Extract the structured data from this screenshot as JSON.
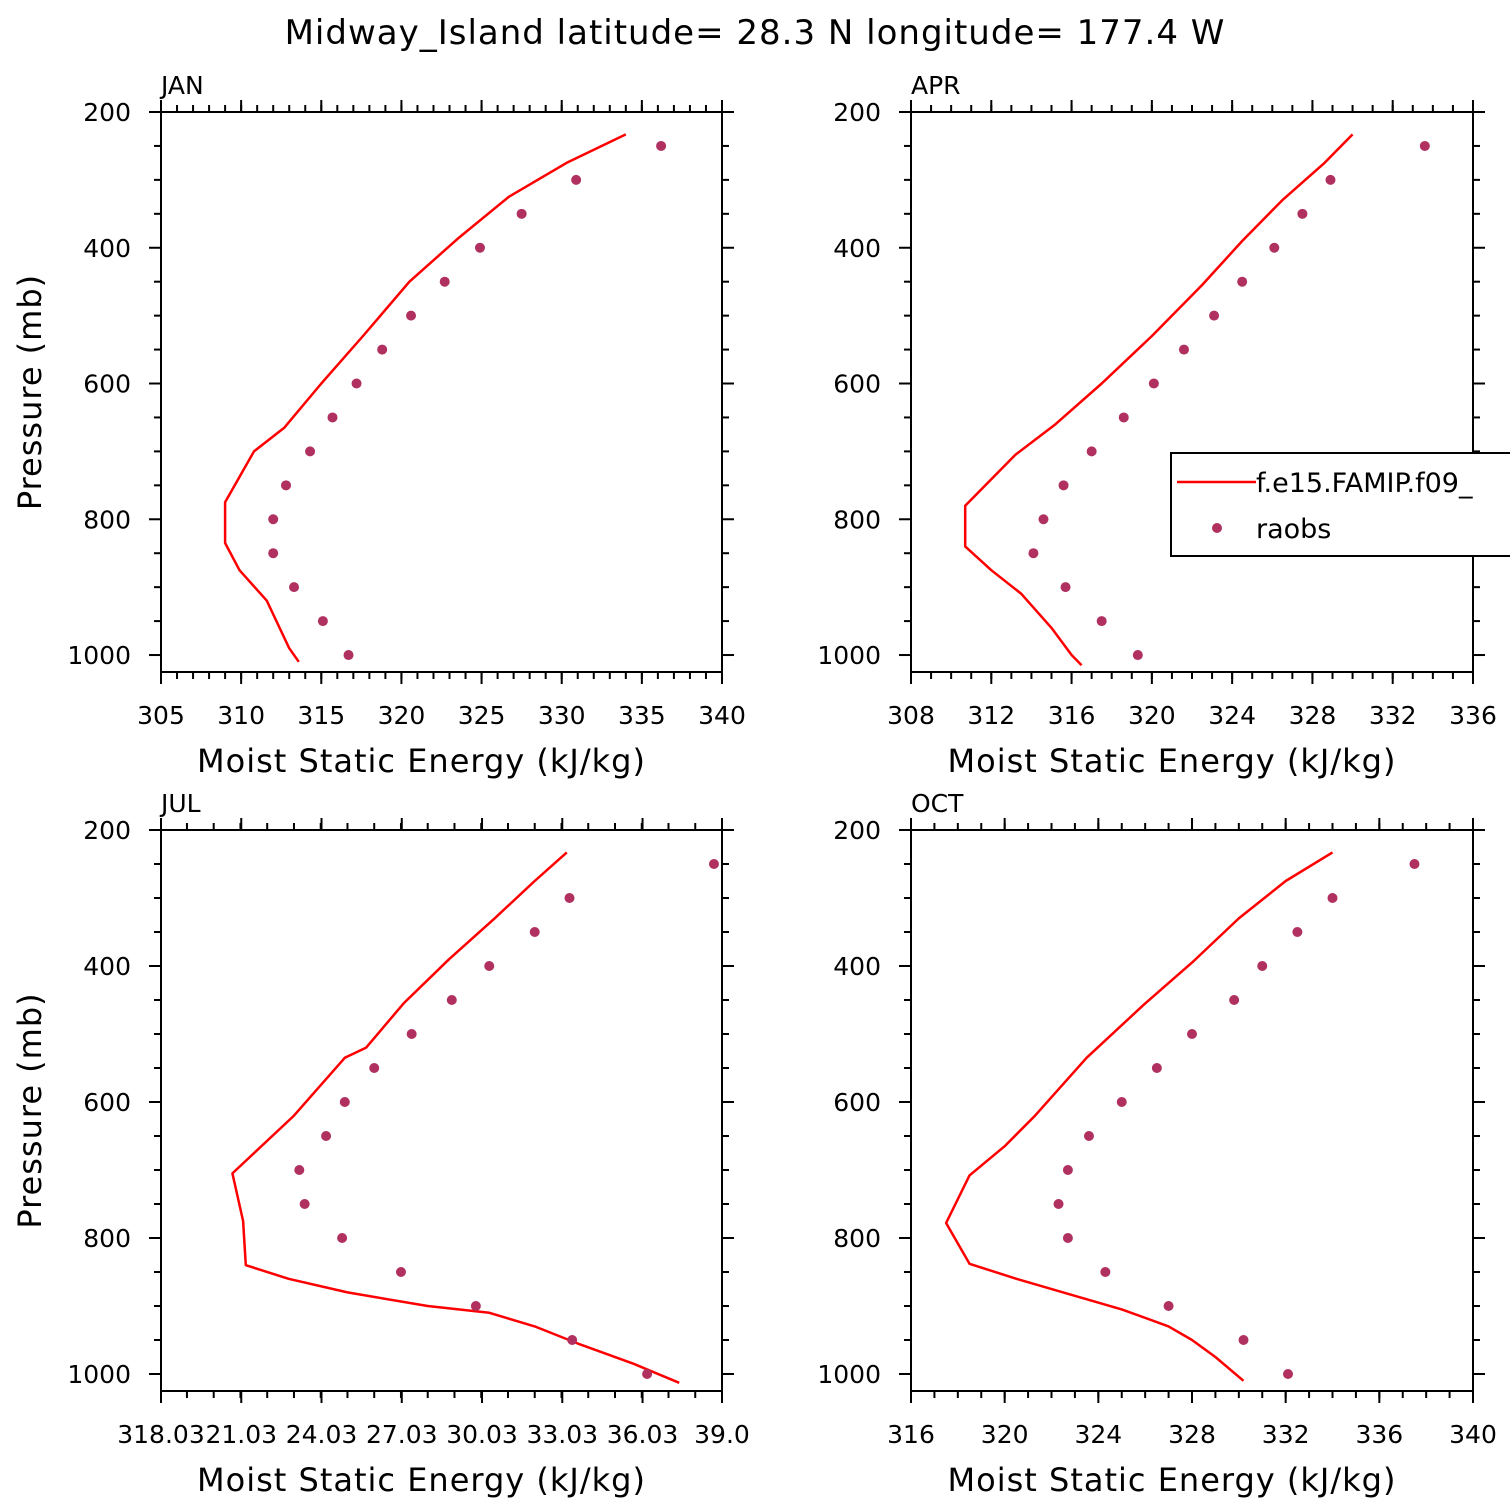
{
  "title": "Midway_Island  latitude= 28.3 N longitude= 177.4 W",
  "colors": {
    "model_line": "#ff0000",
    "raobs_marker": "#b0305f",
    "axes": "#000000"
  },
  "legend": {
    "entries": [
      {
        "label": "f.e15.FAMIP.f09_",
        "style": "line"
      },
      {
        "label": "raobs",
        "style": "marker"
      }
    ]
  },
  "chart_data": [
    {
      "type": "line",
      "panel": "JAN",
      "xlabel": "Moist Static Energy (kJ/kg)",
      "ylabel": "Pressure (mb)",
      "xlim": [
        305,
        340
      ],
      "ylim": [
        1025,
        200
      ],
      "xticks": [
        305,
        310,
        315,
        320,
        325,
        330,
        335,
        340
      ],
      "xtick_labels": [
        "305",
        "310",
        "315",
        "320",
        "325",
        "330",
        "335",
        "340"
      ],
      "yticks": [
        200,
        400,
        600,
        800,
        1000
      ],
      "yminor": [
        250,
        300,
        350,
        450,
        500,
        550,
        650,
        700,
        750,
        850,
        900,
        950
      ],
      "xminor_step": 1,
      "series": [
        {
          "name": "f.e15.FAMIP.f09_",
          "mode": "line",
          "x": [
            334.0,
            330.3,
            326.7,
            323.5,
            320.5,
            317.6,
            315.0,
            312.7,
            310.8,
            309.0,
            309.0,
            309.9,
            311.6,
            312.4,
            313.0,
            313.6
          ],
          "y": [
            233,
            275,
            325,
            387,
            450,
            530,
            600,
            665,
            700,
            775,
            835,
            875,
            920,
            960,
            990,
            1010
          ]
        },
        {
          "name": "raobs",
          "mode": "markers",
          "x": [
            336.2,
            330.9,
            327.5,
            324.9,
            322.7,
            320.6,
            318.8,
            317.2,
            315.7,
            314.3,
            312.8,
            312.0,
            312.0,
            313.3,
            315.1,
            316.7
          ],
          "y": [
            250,
            300,
            350,
            400,
            450,
            500,
            550,
            600,
            650,
            700,
            750,
            800,
            850,
            900,
            950,
            1000
          ]
        }
      ],
      "legend": false
    },
    {
      "type": "line",
      "panel": "APR",
      "xlabel": "Moist Static Energy (kJ/kg)",
      "ylabel": "",
      "xlim": [
        308,
        336
      ],
      "ylim": [
        1025,
        200
      ],
      "xticks": [
        308,
        312,
        316,
        320,
        324,
        328,
        332,
        336
      ],
      "xtick_labels": [
        "308",
        "312",
        "316",
        "320",
        "324",
        "328",
        "332",
        "336"
      ],
      "yticks": [
        200,
        400,
        600,
        800,
        1000
      ],
      "yminor": [
        250,
        300,
        350,
        450,
        500,
        550,
        650,
        700,
        750,
        850,
        900,
        950
      ],
      "xminor_step": 1,
      "series": [
        {
          "name": "f.e15.FAMIP.f09_",
          "mode": "line",
          "x": [
            330.0,
            328.6,
            326.5,
            324.5,
            322.5,
            320.0,
            317.5,
            315.2,
            313.2,
            310.7,
            310.7,
            312.0,
            313.5,
            315.0,
            316.0,
            316.5
          ],
          "y": [
            233,
            275,
            330,
            390,
            455,
            530,
            600,
            660,
            705,
            780,
            840,
            875,
            910,
            960,
            1000,
            1015
          ]
        },
        {
          "name": "raobs",
          "mode": "markers",
          "x": [
            333.6,
            328.9,
            327.5,
            326.1,
            324.5,
            323.1,
            321.6,
            320.1,
            318.6,
            317.0,
            315.6,
            314.6,
            314.1,
            315.7,
            317.5,
            319.3
          ],
          "y": [
            250,
            300,
            350,
            400,
            450,
            500,
            550,
            600,
            650,
            700,
            750,
            800,
            850,
            900,
            950,
            1000
          ]
        }
      ],
      "legend": true
    },
    {
      "type": "line",
      "panel": "JUL",
      "xlabel": "Moist Static Energy (kJ/kg)",
      "ylabel": "Pressure (mb)",
      "xlim": [
        318.03,
        339.0
      ],
      "ylim": [
        1025,
        200
      ],
      "xticks": [
        318.03,
        321.03,
        324.03,
        327.03,
        330.03,
        333.03,
        336.03,
        339.0
      ],
      "xtick_labels": [
        "318.03",
        "21.03",
        "24.03",
        "27.03",
        "30.03",
        "33.03",
        "36.03",
        "39.0"
      ],
      "yticks": [
        200,
        400,
        600,
        800,
        1000
      ],
      "yminor": [
        250,
        300,
        350,
        450,
        500,
        550,
        650,
        700,
        750,
        850,
        900,
        950
      ],
      "xminor_step": 1,
      "series": [
        {
          "name": "f.e15.FAMIP.f09_",
          "mode": "line",
          "x": [
            333.2,
            332.0,
            330.5,
            328.8,
            327.1,
            325.7,
            324.9,
            323.0,
            320.7,
            321.1,
            321.2,
            322.8,
            325.0,
            328.0,
            330.3,
            332.0,
            333.6,
            335.7,
            337.4
          ],
          "y": [
            233,
            275,
            330,
            390,
            455,
            520,
            535,
            620,
            705,
            775,
            840,
            860,
            880,
            900,
            910,
            930,
            955,
            985,
            1013
          ]
        },
        {
          "name": "raobs",
          "mode": "markers",
          "x": [
            338.7,
            333.3,
            332.0,
            330.3,
            328.9,
            327.4,
            326.0,
            324.9,
            324.2,
            323.2,
            323.4,
            324.8,
            327.0,
            329.8,
            333.4,
            336.2
          ],
          "y": [
            250,
            300,
            350,
            400,
            450,
            500,
            550,
            600,
            650,
            700,
            750,
            800,
            850,
            900,
            950,
            1000
          ]
        }
      ],
      "legend": false
    },
    {
      "type": "line",
      "panel": "OCT",
      "xlabel": "Moist Static Energy (kJ/kg)",
      "ylabel": "",
      "xlim": [
        316,
        340
      ],
      "ylim": [
        1025,
        200
      ],
      "xticks": [
        316,
        320,
        324,
        328,
        332,
        336,
        340
      ],
      "xtick_labels": [
        "316",
        "320",
        "324",
        "328",
        "332",
        "336",
        "340"
      ],
      "yticks": [
        200,
        400,
        600,
        800,
        1000
      ],
      "yminor": [
        250,
        300,
        350,
        450,
        500,
        550,
        650,
        700,
        750,
        850,
        900,
        950
      ],
      "xminor_step": 1,
      "series": [
        {
          "name": "f.e15.FAMIP.f09_",
          "mode": "line",
          "x": [
            334.0,
            332.0,
            330.0,
            328.0,
            326.0,
            323.5,
            321.3,
            320.0,
            318.5,
            317.5,
            318.5,
            320.5,
            322.5,
            325.0,
            327.0,
            328.0,
            329.0,
            330.2
          ],
          "y": [
            233,
            275,
            330,
            395,
            455,
            535,
            620,
            665,
            708,
            778,
            838,
            860,
            880,
            905,
            930,
            950,
            975,
            1010
          ]
        },
        {
          "name": "raobs",
          "mode": "markers",
          "x": [
            337.5,
            334.0,
            332.5,
            331.0,
            329.8,
            328.0,
            326.5,
            325.0,
            323.6,
            322.7,
            322.3,
            322.7,
            324.3,
            327.0,
            330.2,
            332.1
          ],
          "y": [
            250,
            300,
            350,
            400,
            450,
            500,
            550,
            600,
            650,
            700,
            750,
            800,
            850,
            900,
            950,
            1000
          ]
        }
      ],
      "legend": false
    }
  ]
}
